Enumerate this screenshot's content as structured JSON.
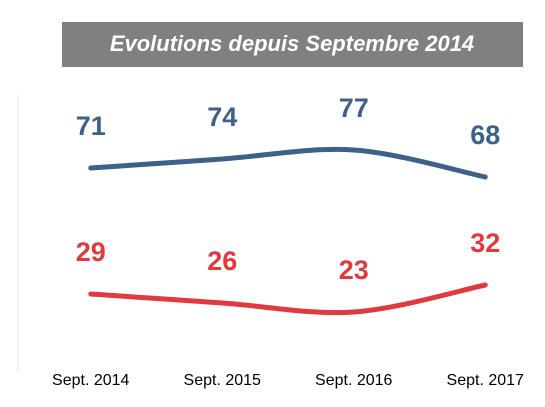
{
  "chart_data": {
    "type": "line",
    "title": "Evolutions depuis Septembre 2014",
    "categories": [
      "Sept. 2014",
      "Sept. 2015",
      "Sept. 2016",
      "Sept. 2017"
    ],
    "series": [
      {
        "color": "#3e6189",
        "values": [
          71,
          74,
          77,
          68
        ]
      },
      {
        "color": "#e0393e",
        "values": [
          29,
          26,
          23,
          32
        ]
      }
    ],
    "ylim": [
      0,
      100
    ]
  }
}
